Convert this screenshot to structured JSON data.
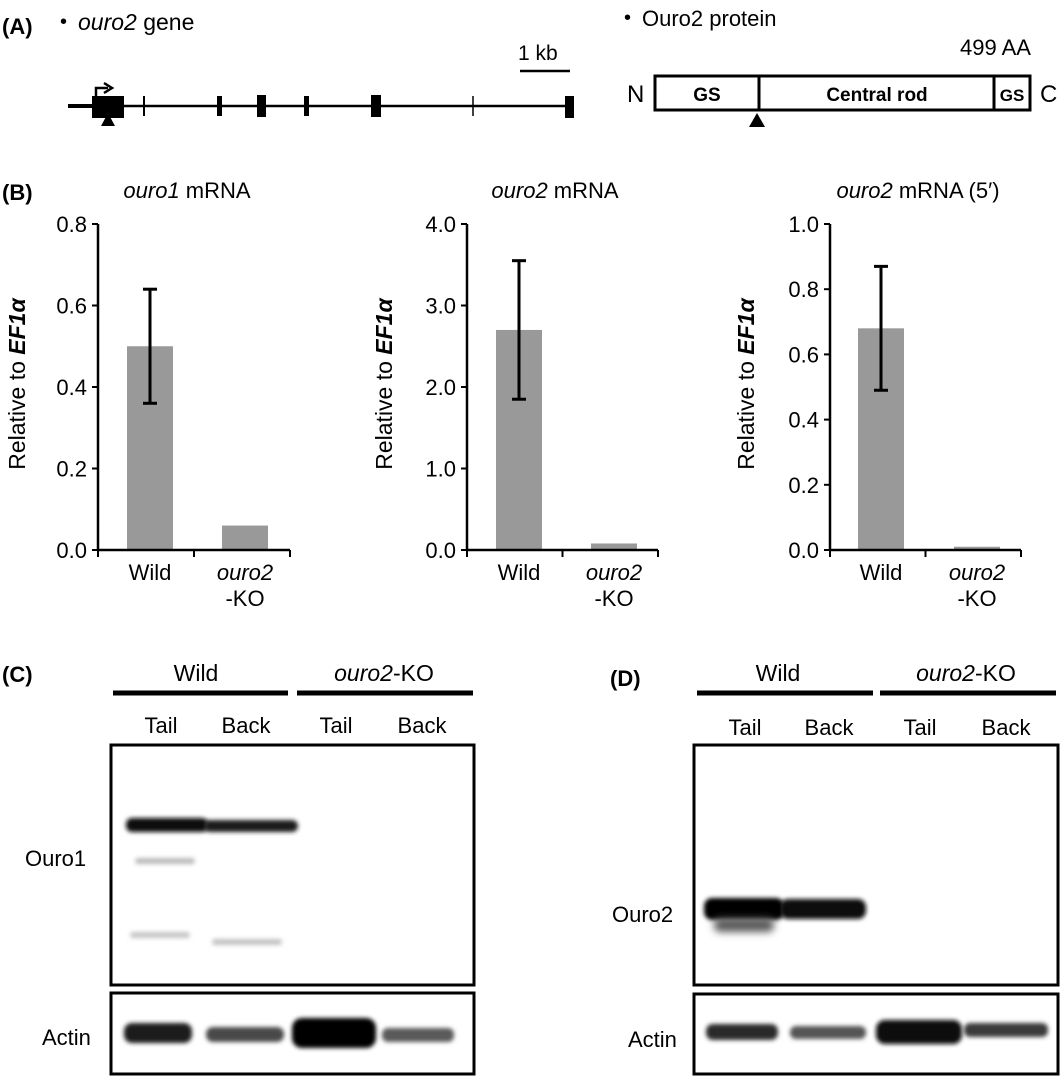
{
  "panel_a": {
    "label": "(A)",
    "gene": {
      "bullet": "•",
      "name": "ouro2",
      "suffix": " gene",
      "scale_label": "1 kb"
    },
    "protein": {
      "bullet": "•",
      "title": "Ouro2 protein",
      "length": "499 AA",
      "n_term": "N",
      "c_term": "C",
      "domains": {
        "gs_left": "GS",
        "central_rod": "Central rod",
        "gs_right": "GS"
      }
    }
  },
  "panel_b": {
    "label": "(B)",
    "ylabel_prefix": "Relative to ",
    "ylabel_gene": "EF1α",
    "xlabel_wild": "Wild",
    "xlabel_ko_line1": "ouro2",
    "xlabel_ko_line2": "-KO",
    "charts": [
      {
        "title_gene": "ouro1",
        "title_rest": " mRNA"
      },
      {
        "title_gene": "ouro2",
        "title_rest": " mRNA"
      },
      {
        "title_gene": "ouro2",
        "title_rest": " mRNA (5′)"
      }
    ]
  },
  "chart_data": [
    {
      "type": "bar",
      "title": "ouro1 mRNA",
      "ylabel": "Relative to EF1α",
      "categories": [
        "Wild",
        "ouro2-KO"
      ],
      "values": [
        0.5,
        0.06
      ],
      "error": [
        0.14,
        null
      ],
      "ylim": [
        0,
        0.8
      ],
      "yticks": [
        "0.0",
        "0.2",
        "0.4",
        "0.6",
        "0.8"
      ],
      "bar_color": "#999999"
    },
    {
      "type": "bar",
      "title": "ouro2 mRNA",
      "ylabel": "Relative to EF1α",
      "categories": [
        "Wild",
        "ouro2-KO"
      ],
      "values": [
        2.7,
        0.08
      ],
      "error": [
        0.85,
        null
      ],
      "ylim": [
        0,
        4.0
      ],
      "yticks": [
        "0.0",
        "1.0",
        "2.0",
        "3.0",
        "4.0"
      ],
      "bar_color": "#999999"
    },
    {
      "type": "bar",
      "title": "ouro2 mRNA (5′)",
      "ylabel": "Relative to EF1α",
      "categories": [
        "Wild",
        "ouro2-KO"
      ],
      "values": [
        0.68,
        0.01
      ],
      "error": [
        0.19,
        null
      ],
      "ylim": [
        0,
        1.0
      ],
      "yticks": [
        "0.0",
        "0.2",
        "0.4",
        "0.6",
        "0.8",
        "1.0"
      ],
      "bar_color": "#999999"
    }
  ],
  "panel_c": {
    "label": "(C)",
    "group_wild": "Wild",
    "group_ko_gene": "ouro2",
    "group_ko_suffix": "-KO",
    "lanes": [
      "Tail",
      "Back",
      "Tail",
      "Back"
    ],
    "blot_main": "Ouro1",
    "blot_control": "Actin"
  },
  "panel_d": {
    "label": "(D)",
    "group_wild": "Wild",
    "group_ko_gene": "ouro2",
    "group_ko_suffix": "-KO",
    "lanes": [
      "Tail",
      "Back",
      "Tail",
      "Back"
    ],
    "blot_main": "Ouro2",
    "blot_control": "Actin"
  }
}
